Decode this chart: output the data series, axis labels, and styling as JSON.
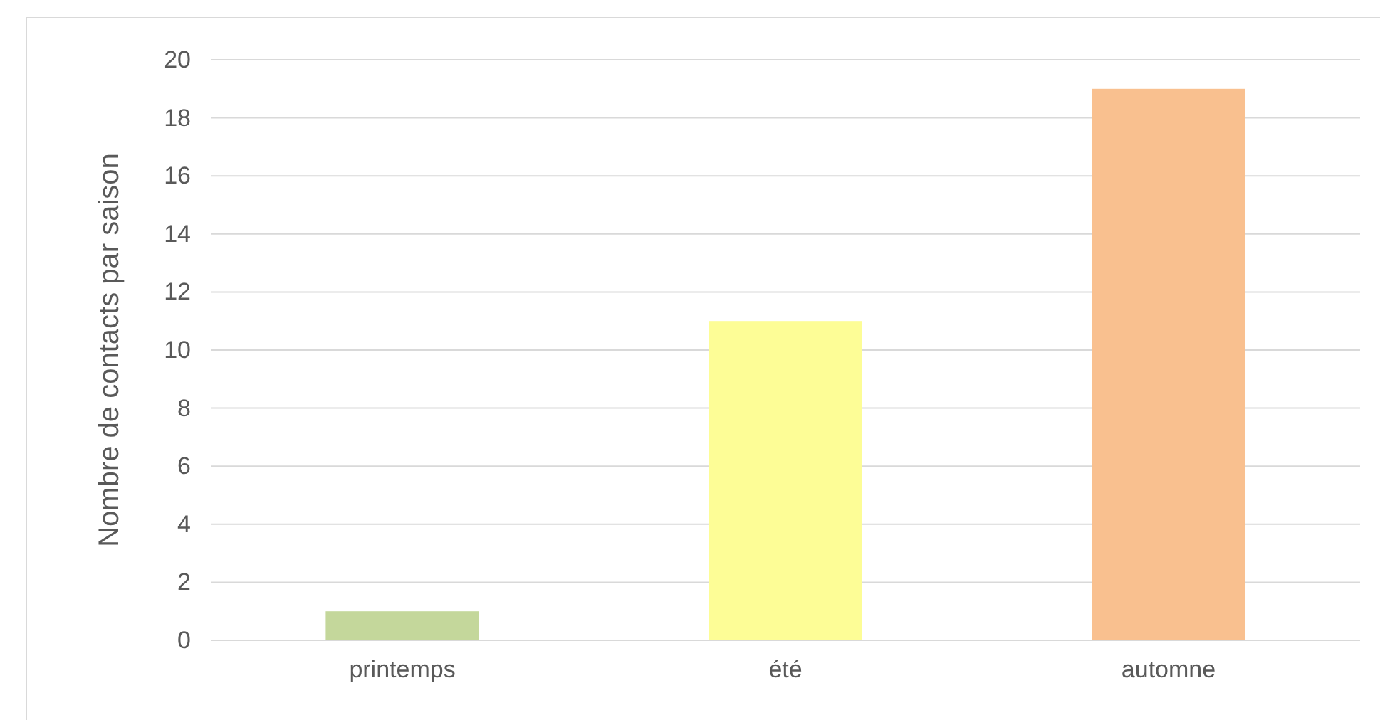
{
  "chart_data": {
    "type": "bar",
    "ylabel": "Nombre de contacts par saison",
    "categories": [
      "printemps",
      "été",
      "automne"
    ],
    "values": [
      1,
      11,
      19
    ],
    "colors": [
      "#c4d79b",
      "#fdfd96",
      "#f9c08f"
    ],
    "ylim": [
      0,
      20
    ],
    "yticks": [
      0,
      2,
      4,
      6,
      8,
      10,
      12,
      14,
      16,
      18,
      20
    ],
    "grid": "y"
  }
}
